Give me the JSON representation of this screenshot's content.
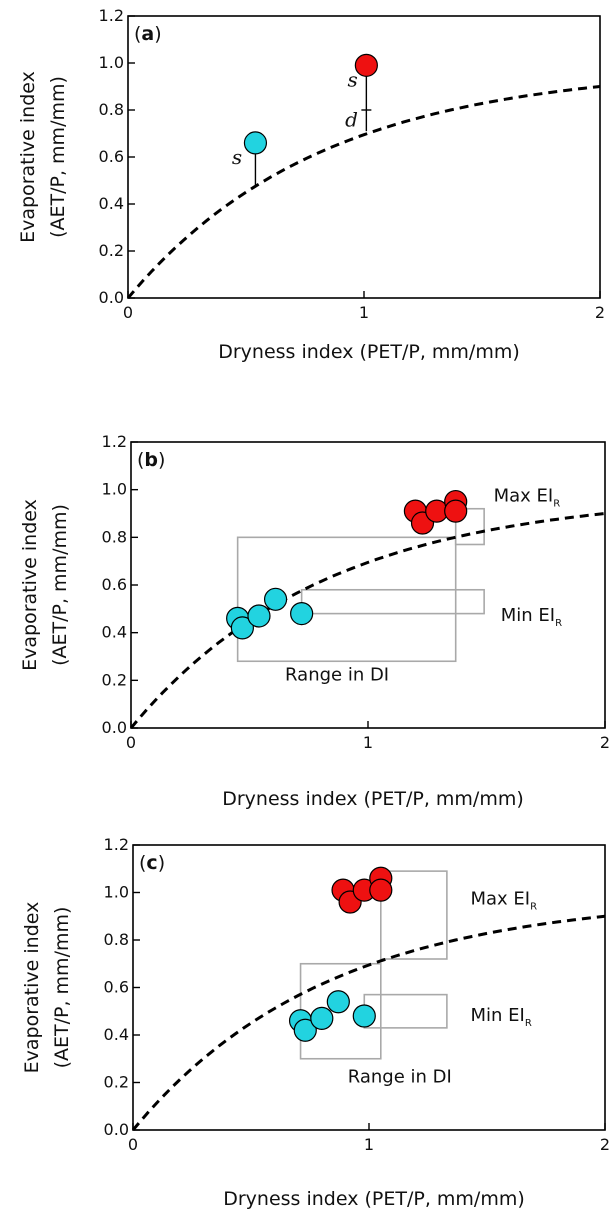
{
  "chart_data": [
    {
      "type": "scatter",
      "panel_label_prefix": "(",
      "panel_letter": "a",
      "panel_label_suffix": ")",
      "xlabel": "Dryness index (PET/P, mm/mm)",
      "ylabel_line1": "Evaporative index",
      "ylabel_line2": "(AET/P, mm/mm)",
      "xlim": [
        0,
        2
      ],
      "ylim": [
        0,
        1.2
      ],
      "x_ticks": [
        "0",
        "1",
        "2"
      ],
      "x_tick_values": [
        0,
        1,
        2
      ],
      "y_ticks": [
        "0.0",
        "0.2",
        "0.4",
        "0.6",
        "0.8",
        "1.0",
        "1.2"
      ],
      "y_tick_values": [
        0,
        0.2,
        0.4,
        0.6,
        0.8,
        1.0,
        1.2
      ],
      "curve": {
        "style": "dashed",
        "color": "#000000"
      },
      "series": [
        {
          "color": "#22d3e0",
          "points": [
            {
              "x": 0.54,
              "y": 0.66
            }
          ]
        },
        {
          "color": "#ee1111",
          "points": [
            {
              "x": 1.01,
              "y": 0.99
            }
          ]
        }
      ],
      "segments": [
        {
          "x": 0.54,
          "y0": 0.47,
          "y1": 0.66
        },
        {
          "x": 1.01,
          "y0": 0.71,
          "y1": 0.8
        },
        {
          "x": 1.01,
          "y0": 0.8,
          "y1": 0.99
        }
      ],
      "annotations": [
        {
          "text": "s",
          "x": 0.44,
          "y": 0.57,
          "italic": true
        },
        {
          "text": "s",
          "x": 0.93,
          "y": 0.9,
          "italic": true
        },
        {
          "text": "d",
          "x": 0.92,
          "y": 0.73,
          "italic": true
        }
      ],
      "boxes": []
    },
    {
      "type": "scatter",
      "panel_label_prefix": "(",
      "panel_letter": "b",
      "panel_label_suffix": ")",
      "xlabel": "Dryness index (PET/P, mm/mm)",
      "ylabel_line1": "Evaporative index",
      "ylabel_line2": "(AET/P, mm/mm)",
      "xlim": [
        0,
        2
      ],
      "ylim": [
        0,
        1.2
      ],
      "x_ticks": [
        "0",
        "1",
        "2"
      ],
      "x_tick_values": [
        0,
        1,
        2
      ],
      "y_ticks": [
        "0.0",
        "0.2",
        "0.4",
        "0.6",
        "0.8",
        "1.0",
        "1.2"
      ],
      "y_tick_values": [
        0,
        0.2,
        0.4,
        0.6,
        0.8,
        1.0,
        1.2
      ],
      "curve": {
        "style": "dashed",
        "color": "#000000"
      },
      "series": [
        {
          "color": "#22d3e0",
          "points": [
            {
              "x": 0.45,
              "y": 0.46
            },
            {
              "x": 0.47,
              "y": 0.42
            },
            {
              "x": 0.54,
              "y": 0.47
            },
            {
              "x": 0.61,
              "y": 0.54
            },
            {
              "x": 0.72,
              "y": 0.48
            }
          ]
        },
        {
          "color": "#ee1111",
          "points": [
            {
              "x": 1.2,
              "y": 0.91
            },
            {
              "x": 1.23,
              "y": 0.86
            },
            {
              "x": 1.29,
              "y": 0.91
            },
            {
              "x": 1.37,
              "y": 0.95
            },
            {
              "x": 1.37,
              "y": 0.91
            }
          ]
        }
      ],
      "segments": [],
      "annotations": [
        {
          "text": "Max EI",
          "sub": "R",
          "x": 1.53,
          "y": 0.95
        },
        {
          "text": "Min EI",
          "sub": "R",
          "x": 1.56,
          "y": 0.45
        },
        {
          "text": "Range in DI",
          "x": 0.65,
          "y": 0.2
        }
      ],
      "boxes": [
        {
          "x0": 0.45,
          "x1": 1.37,
          "y0": 0.28,
          "y1": 0.8
        },
        {
          "x0": 1.37,
          "x1": 1.49,
          "y0": 0.77,
          "y1": 0.92
        },
        {
          "x0": 0.72,
          "x1": 1.49,
          "y0": 0.48,
          "y1": 0.58
        }
      ]
    },
    {
      "type": "scatter",
      "panel_label_prefix": "(",
      "panel_letter": "c",
      "panel_label_suffix": ")",
      "xlabel": "Dryness index (PET/P, mm/mm)",
      "ylabel_line1": "Evaporative index",
      "ylabel_line2": "(AET/P, mm/mm)",
      "xlim": [
        0,
        2
      ],
      "ylim": [
        0,
        1.2
      ],
      "x_ticks": [
        "0",
        "1",
        "2"
      ],
      "x_tick_values": [
        0,
        1,
        2
      ],
      "y_ticks": [
        "0.0",
        "0.2",
        "0.4",
        "0.6",
        "0.8",
        "1.0",
        "1.2"
      ],
      "y_tick_values": [
        0,
        0.2,
        0.4,
        0.6,
        0.8,
        1.0,
        1.2
      ],
      "curve": {
        "style": "dashed",
        "color": "#000000"
      },
      "series": [
        {
          "color": "#22d3e0",
          "points": [
            {
              "x": 0.71,
              "y": 0.46
            },
            {
              "x": 0.73,
              "y": 0.42
            },
            {
              "x": 0.8,
              "y": 0.47
            },
            {
              "x": 0.87,
              "y": 0.54
            },
            {
              "x": 0.98,
              "y": 0.48
            }
          ]
        },
        {
          "color": "#ee1111",
          "points": [
            {
              "x": 0.89,
              "y": 1.01
            },
            {
              "x": 0.92,
              "y": 0.96
            },
            {
              "x": 0.98,
              "y": 1.01
            },
            {
              "x": 1.05,
              "y": 1.06
            },
            {
              "x": 1.05,
              "y": 1.01
            }
          ]
        }
      ],
      "segments": [],
      "annotations": [
        {
          "text": "Max EI",
          "sub": "R",
          "x": 1.43,
          "y": 0.95
        },
        {
          "text": "Min EI",
          "sub": "R",
          "x": 1.43,
          "y": 0.46
        },
        {
          "text": "Range in DI",
          "x": 0.91,
          "y": 0.2
        }
      ],
      "boxes": [
        {
          "x0": 0.71,
          "x1": 1.05,
          "y0": 0.3,
          "y1": 0.7
        },
        {
          "x0": 1.05,
          "x1": 1.33,
          "y0": 0.72,
          "y1": 1.09
        },
        {
          "x0": 0.98,
          "x1": 1.33,
          "y0": 0.43,
          "y1": 0.57
        }
      ]
    }
  ]
}
